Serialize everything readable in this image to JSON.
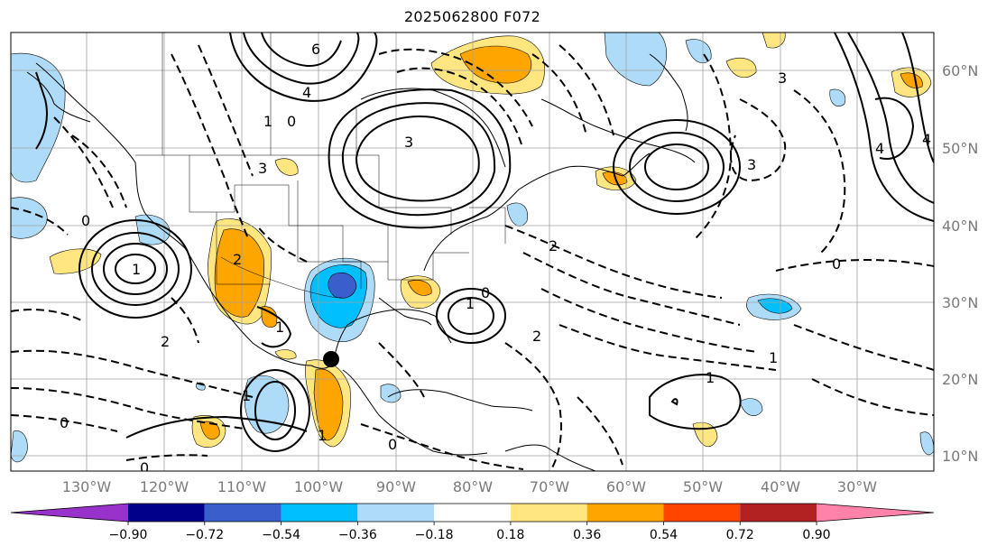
{
  "title": "2025062800 F072",
  "lon_labels": [
    "130°W",
    "120°W",
    "110°W",
    "100°W",
    "90°W",
    "80°W",
    "70°W",
    "60°W",
    "50°W",
    "40°W",
    "30°W"
  ],
  "lat_labels": [
    "60°N",
    "50°N",
    "40°N",
    "30°N",
    "20°N",
    "10°N"
  ],
  "colorbar": {
    "ticks": [
      "−0.90",
      "−0.72",
      "−0.54",
      "−0.36",
      "−0.18",
      "0.18",
      "0.36",
      "0.54",
      "0.72",
      "0.90"
    ],
    "colors": [
      "#9932cc",
      "#00008b",
      "#3a5fcd",
      "#00bfff",
      "#aedcf8",
      "#ffffff",
      "#ffe680",
      "#ffa500",
      "#ff4500",
      "#b22222",
      "#ff82ab"
    ]
  },
  "shading_colors": {
    "light_blue": "#aedcf8",
    "blue": "#00bfff",
    "dark_blue": "#3a5fcd",
    "yellow": "#ffe680",
    "orange": "#ffa500",
    "red_orange": "#ff4500"
  },
  "contour_labels": [
    "6",
    "4",
    "1",
    "3",
    "0",
    "2",
    "1",
    "0",
    "2",
    "1",
    "3",
    "0",
    "1",
    "0",
    "1",
    "2",
    "1",
    "0",
    "0",
    "2",
    "1",
    "4",
    "3",
    "4",
    "3",
    "0",
    "1"
  ],
  "marker": "storm-center-dot"
}
